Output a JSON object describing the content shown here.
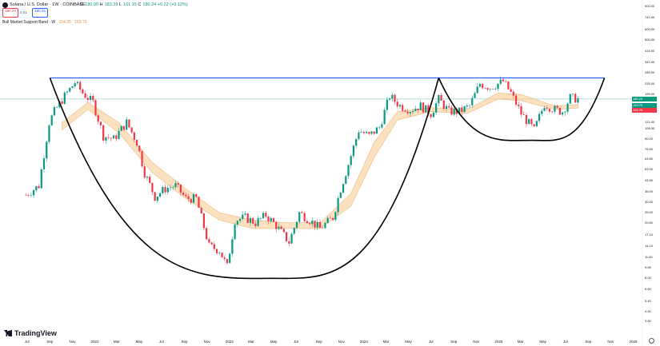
{
  "header": {
    "symbol_line": "Solana / U.S. Dollar · 1W · COINBASE",
    "ohlc": [
      {
        "k": "O",
        "v": "180.00"
      },
      {
        "k": "H",
        "v": "183.39"
      },
      {
        "k": "L",
        "v": "161.15"
      },
      {
        "k": "C",
        "v": "180.24"
      },
      {
        "k": "",
        "v": "+0.22 (+0.12%)"
      }
    ],
    "sell_box": "180.24",
    "buy_box": "180.25",
    "spread": "0.01",
    "indicator_name": "Bull Market Support Band · W",
    "indicator_v1": "154.26",
    "indicator_v2": "163.76"
  },
  "branding": {
    "logo_text": "TradingView"
  },
  "colors": {
    "up": "#089981",
    "down": "#f23645",
    "band": "#f7c98b",
    "resistance": "#2962ff",
    "curve": "#000000",
    "price_line": "#089981"
  },
  "axis": {
    "y_ticks": [
      "900.00",
      "740.00",
      "600.00",
      "500.00",
      "415.00",
      "340.00",
      "285.00",
      "235.00",
      "195.00",
      "160.00",
      "121.00",
      "108.00",
      "90.00",
      "75.50",
      "63.80",
      "53.00",
      "43.50",
      "36.00",
      "30.00",
      "25.00",
      "20.80",
      "17.10",
      "14.10",
      "11.60",
      "9.65",
      "8.00",
      "6.60",
      "5.40",
      "4.50",
      "3.80"
    ],
    "x_ticks": [
      "Jul",
      "Sep",
      "Nov",
      "2022",
      "Mar",
      "May",
      "Jul",
      "Sep",
      "Nov",
      "2023",
      "Mar",
      "May",
      "Jul",
      "Sep",
      "Nov",
      "2024",
      "Mar",
      "May",
      "Jul",
      "Sep",
      "Nov",
      "2025",
      "Mar",
      "May",
      "Jul",
      "Sep",
      "Nov",
      "2026"
    ],
    "price_tags": [
      {
        "label": "180.24",
        "price": 180.24,
        "color": "#089981"
      },
      {
        "label": "163.76",
        "price": 163.76,
        "color": "#089981"
      },
      {
        "label": "154.26",
        "price": 154.26,
        "color": "#f23645"
      }
    ]
  },
  "chart_data": {
    "type": "candlestick",
    "title": "Solana / U.S. Dollar · 1W · COINBASE",
    "y_scale": "log",
    "ylim": [
      3.8,
      900
    ],
    "x_range": [
      "2021-06",
      "2026-01"
    ],
    "series": [
      {
        "kind": "ohlc_close_estimate",
        "points": [
          [
            "2021-06-28",
            34
          ],
          [
            "2021-08-02",
            40
          ],
          [
            "2021-08-30",
            120
          ],
          [
            "2021-09-13",
            145
          ],
          [
            "2021-10-11",
            190
          ],
          [
            "2021-11-08",
            240
          ],
          [
            "2021-11-29",
            200
          ],
          [
            "2021-12-27",
            170
          ],
          [
            "2022-01-24",
            95
          ],
          [
            "2022-02-21",
            90
          ],
          [
            "2022-03-28",
            120
          ],
          [
            "2022-04-25",
            85
          ],
          [
            "2022-05-16",
            50
          ],
          [
            "2022-06-13",
            33
          ],
          [
            "2022-07-11",
            38
          ],
          [
            "2022-08-08",
            40
          ],
          [
            "2022-09-05",
            32
          ],
          [
            "2022-10-03",
            32
          ],
          [
            "2022-11-07",
            14
          ],
          [
            "2022-12-05",
            13
          ],
          [
            "2022-12-26",
            9.8
          ],
          [
            "2023-01-16",
            22
          ],
          [
            "2023-02-13",
            23
          ],
          [
            "2023-03-13",
            21
          ],
          [
            "2023-04-10",
            24
          ],
          [
            "2023-05-08",
            20
          ],
          [
            "2023-06-12",
            15
          ],
          [
            "2023-07-10",
            25
          ],
          [
            "2023-08-07",
            22
          ],
          [
            "2023-09-04",
            19
          ],
          [
            "2023-10-09",
            23
          ],
          [
            "2023-10-30",
            38
          ],
          [
            "2023-11-20",
            58
          ],
          [
            "2023-12-18",
            105
          ],
          [
            "2024-01-15",
            95
          ],
          [
            "2024-02-12",
            110
          ],
          [
            "2024-03-11",
            190
          ],
          [
            "2024-04-08",
            160
          ],
          [
            "2024-05-06",
            150
          ],
          [
            "2024-06-03",
            160
          ],
          [
            "2024-07-01",
            140
          ],
          [
            "2024-07-22",
            180
          ],
          [
            "2024-08-19",
            145
          ],
          [
            "2024-09-16",
            145
          ],
          [
            "2024-10-14",
            160
          ],
          [
            "2024-11-11",
            235
          ],
          [
            "2024-12-09",
            220
          ],
          [
            "2025-01-13",
            245
          ],
          [
            "2025-02-03",
            200
          ],
          [
            "2025-03-03",
            140
          ],
          [
            "2025-04-07",
            105
          ],
          [
            "2025-05-05",
            165
          ],
          [
            "2025-06-02",
            150
          ],
          [
            "2025-06-23",
            145
          ],
          [
            "2025-07-14",
            185
          ],
          [
            "2025-08-04",
            180.24
          ]
        ]
      },
      {
        "name": "Bull Market Support Band",
        "kind": "band",
        "upper": [
          [
            "2021-10-04",
            120
          ],
          [
            "2021-12-13",
            170
          ],
          [
            "2022-03-07",
            120
          ],
          [
            "2022-06-06",
            60
          ],
          [
            "2022-09-05",
            38
          ],
          [
            "2022-12-05",
            25
          ],
          [
            "2023-03-06",
            22
          ],
          [
            "2023-06-05",
            21
          ],
          [
            "2023-09-04",
            21
          ],
          [
            "2023-11-27",
            35
          ],
          [
            "2024-01-29",
            85
          ],
          [
            "2024-04-01",
            145
          ],
          [
            "2024-07-01",
            155
          ],
          [
            "2024-10-07",
            150
          ],
          [
            "2024-12-30",
            200
          ],
          [
            "2025-03-03",
            195
          ],
          [
            "2025-06-02",
            160
          ],
          [
            "2025-08-04",
            163.76
          ]
        ],
        "lower": [
          [
            "2021-10-04",
            105
          ],
          [
            "2021-12-13",
            150
          ],
          [
            "2022-03-07",
            100
          ],
          [
            "2022-06-06",
            50
          ],
          [
            "2022-09-05",
            32
          ],
          [
            "2022-12-05",
            22
          ],
          [
            "2023-03-06",
            19
          ],
          [
            "2023-06-05",
            19
          ],
          [
            "2023-09-04",
            19
          ],
          [
            "2023-11-27",
            28
          ],
          [
            "2024-01-29",
            65
          ],
          [
            "2024-04-01",
            125
          ],
          [
            "2024-07-01",
            145
          ],
          [
            "2024-10-07",
            140
          ],
          [
            "2024-12-30",
            180
          ],
          [
            "2025-03-03",
            175
          ],
          [
            "2025-06-02",
            150
          ],
          [
            "2025-08-04",
            154.26
          ]
        ]
      }
    ],
    "annotations": [
      {
        "type": "horizontal_line",
        "price": 260,
        "from": "2021-09-01",
        "to": "2025-10-15",
        "color": "#2962ff"
      },
      {
        "type": "curve",
        "shape": "cup",
        "from": "2021-09-01",
        "bottom": [
          "2023-05-01",
          8.0
        ],
        "to": "2024-07-22"
      },
      {
        "type": "curve",
        "shape": "handle",
        "from": "2024-07-22",
        "bottom": [
          "2025-04-01",
          88
        ],
        "to": "2025-10-15"
      }
    ]
  }
}
